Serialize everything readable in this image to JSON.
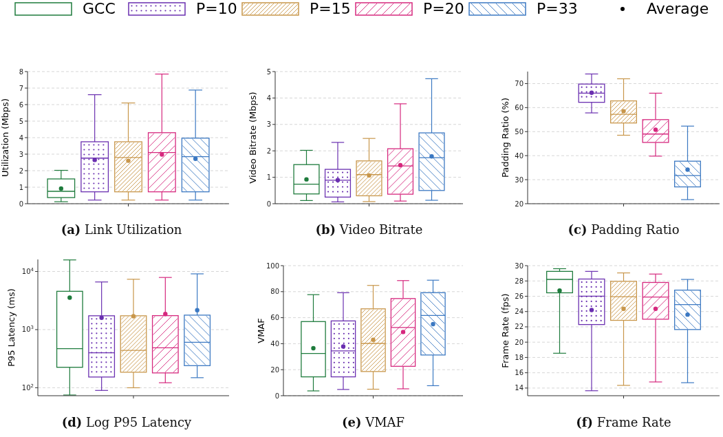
{
  "chart_data": [
    {
      "type": "box",
      "title": "(a) Link Utilization",
      "ylabel": "Utilization (Mbps)",
      "categories": [
        null
      ],
      "ylim": [
        0,
        8
      ],
      "yticks": [
        0,
        1,
        2,
        3,
        4,
        5,
        6,
        7,
        8
      ],
      "grid": "y",
      "legend": "top",
      "series": [
        {
          "name": "GCC",
          "color": "#1e7b3c",
          "boxes": [
            {
              "low": 0.12,
              "q1": 0.37,
              "median": 0.75,
              "q3": 1.5,
              "high": 2.02,
              "mean": 0.92
            }
          ]
        },
        {
          "name": "P=10",
          "color": "#6a2fb0",
          "boxes": [
            {
              "low": 0.22,
              "q1": 0.72,
              "median": 2.76,
              "q3": 3.75,
              "high": 6.6,
              "mean": 2.65
            }
          ]
        },
        {
          "name": "P=15",
          "color": "#c8964a",
          "boxes": [
            {
              "low": 0.22,
              "q1": 0.72,
              "median": 2.8,
              "q3": 3.75,
              "high": 6.1,
              "mean": 2.6
            }
          ]
        },
        {
          "name": "P=20",
          "color": "#d6287e",
          "boxes": [
            {
              "low": 0.22,
              "q1": 0.72,
              "median": 3.1,
              "q3": 4.3,
              "high": 7.85,
              "mean": 2.98
            }
          ]
        },
        {
          "name": "P=33",
          "color": "#3b78c2",
          "boxes": [
            {
              "low": 0.22,
              "q1": 0.72,
              "median": 2.85,
              "q3": 3.97,
              "high": 6.88,
              "mean": 2.72
            }
          ]
        },
        {
          "name": "Average",
          "type": "scatter",
          "color": "#000000",
          "values": [
            null
          ]
        }
      ]
    },
    {
      "type": "box",
      "title": "(b) Video Bitrate",
      "ylabel": "Video Bitrate (Mbps)",
      "categories": [
        null
      ],
      "ylim": [
        0,
        5
      ],
      "yticks": [
        0,
        1,
        2,
        3,
        4,
        5
      ],
      "grid": "y",
      "series": [
        {
          "color": "#1e7b3c",
          "boxes": [
            {
              "low": 0.12,
              "q1": 0.37,
              "median": 0.74,
              "q3": 1.48,
              "high": 2.02,
              "mean": 0.92
            }
          ]
        },
        {
          "color": "#6a2fb0",
          "boxes": [
            {
              "low": 0.07,
              "q1": 0.25,
              "median": 0.89,
              "q3": 1.3,
              "high": 2.32,
              "mean": 0.89
            }
          ]
        },
        {
          "color": "#c8964a",
          "boxes": [
            {
              "low": 0.08,
              "q1": 0.3,
              "median": 1.1,
              "q3": 1.62,
              "high": 2.47,
              "mean": 1.07
            }
          ]
        },
        {
          "color": "#d6287e",
          "boxes": [
            {
              "low": 0.1,
              "q1": 0.36,
              "median": 1.43,
              "q3": 2.08,
              "high": 3.78,
              "mean": 1.46
            }
          ]
        },
        {
          "color": "#3b78c2",
          "boxes": [
            {
              "low": 0.13,
              "q1": 0.5,
              "median": 1.74,
              "q3": 2.68,
              "high": 4.73,
              "mean": 1.79
            }
          ]
        }
      ]
    },
    {
      "type": "box",
      "title": "(c) Padding Ratio",
      "ylabel": "Padding Ratio (%)",
      "categories": [
        null
      ],
      "ylim": [
        20,
        75
      ],
      "yticks": [
        20,
        30,
        40,
        50,
        60,
        70
      ],
      "grid": "y",
      "series": [
        {
          "boxes": [
            null
          ]
        },
        {
          "color": "#6a2fb0",
          "boxes": [
            {
              "low": 57.8,
              "q1": 62.2,
              "median": 66,
              "q3": 69.8,
              "high": 74,
              "mean": 66.2
            }
          ]
        },
        {
          "color": "#c8964a",
          "boxes": [
            {
              "low": 48.5,
              "q1": 53.6,
              "median": 57.2,
              "q3": 62.8,
              "high": 72,
              "mean": 58.5
            }
          ]
        },
        {
          "color": "#d6287e",
          "boxes": [
            {
              "low": 39.8,
              "q1": 45.5,
              "median": 49,
              "q3": 55,
              "high": 66,
              "mean": 50.8
            }
          ]
        },
        {
          "color": "#3b78c2",
          "boxes": [
            {
              "low": 21.7,
              "q1": 27,
              "median": 31.7,
              "q3": 37.7,
              "high": 52.3,
              "mean": 34.2
            }
          ]
        }
      ]
    },
    {
      "type": "box",
      "title": "(d) Log P95 Latency",
      "ylabel": "P95 Latency (ms)",
      "categories": [
        null
      ],
      "log": true,
      "ylim": [
        73,
        16100
      ],
      "yticks": [
        {
          "value": 100,
          "label": "10$^{2}$"
        },
        {
          "value": 1000,
          "label": "10$^{3}$"
        },
        {
          "value": 10000,
          "label": "10$^{4}$"
        }
      ],
      "grid": "y",
      "series": [
        {
          "color": "#1e7b3c",
          "boxes": [
            {
              "low": 75,
              "q1": 225,
              "median": 470,
              "q3": 4560,
              "high": 15800,
              "mean": 3550
            }
          ]
        },
        {
          "color": "#6a2fb0",
          "boxes": [
            {
              "low": 90,
              "q1": 153,
              "median": 400,
              "q3": 1730,
              "high": 6600,
              "mean": 1600
            }
          ]
        },
        {
          "color": "#c8964a",
          "boxes": [
            {
              "low": 100,
              "q1": 185,
              "median": 440,
              "q3": 1730,
              "high": 7350,
              "mean": 1700
            }
          ]
        },
        {
          "color": "#d6287e",
          "boxes": [
            {
              "low": 122,
              "q1": 180,
              "median": 487,
              "q3": 1740,
              "high": 7890,
              "mean": 1860
            }
          ]
        },
        {
          "color": "#3b78c2",
          "boxes": [
            {
              "low": 149,
              "q1": 240,
              "median": 605,
              "q3": 1775,
              "high": 9100,
              "mean": 2160
            }
          ]
        }
      ]
    },
    {
      "type": "box",
      "title": "(e) VMAF",
      "ylabel": "VMAF",
      "categories": [
        null
      ],
      "ylim": [
        0,
        100
      ],
      "yticks": [
        0,
        20,
        40,
        60,
        80,
        100
      ],
      "grid": "y",
      "series": [
        {
          "color": "#1e7b3c",
          "boxes": [
            {
              "low": 3.7,
              "q1": 14.5,
              "median": 32.5,
              "q3": 57,
              "high": 77.7,
              "mean": 36.5
            }
          ]
        },
        {
          "color": "#6a2fb0",
          "boxes": [
            {
              "low": 4.8,
              "q1": 14.5,
              "median": 34.5,
              "q3": 57.5,
              "high": 79.2,
              "mean": 37.8
            }
          ]
        },
        {
          "color": "#c8964a",
          "boxes": [
            {
              "low": 5,
              "q1": 18.6,
              "median": 40.2,
              "q3": 66.8,
              "high": 84.8,
              "mean": 43
            }
          ]
        },
        {
          "color": "#d6287e",
          "boxes": [
            {
              "low": 5.3,
              "q1": 22.6,
              "median": 52.5,
              "q3": 74.7,
              "high": 88.5,
              "mean": 49
            }
          ]
        },
        {
          "color": "#3b78c2",
          "boxes": [
            {
              "low": 7.7,
              "q1": 31.3,
              "median": 61.7,
              "q3": 79.2,
              "high": 88.8,
              "mean": 55
            }
          ]
        }
      ]
    },
    {
      "type": "box",
      "title": "(f) Frame Rate",
      "ylabel": "Frame Rate (fps)",
      "categories": [
        null
      ],
      "ylim": [
        13,
        30
      ],
      "yticks": [
        14,
        16,
        18,
        20,
        22,
        24,
        26,
        28,
        30
      ],
      "grid": "y",
      "series": [
        {
          "color": "#1e7b3c",
          "boxes": [
            {
              "low": 18.55,
              "q1": 26.45,
              "median": 28.2,
              "q3": 29.25,
              "high": 29.6,
              "mean": 26.75
            }
          ]
        },
        {
          "color": "#6a2fb0",
          "boxes": [
            {
              "low": 13.65,
              "q1": 22.3,
              "median": 26,
              "q3": 28.25,
              "high": 29.25,
              "mean": 24.2
            }
          ]
        },
        {
          "color": "#c8964a",
          "boxes": [
            {
              "low": 14.35,
              "q1": 22.85,
              "median": 25.95,
              "q3": 27.95,
              "high": 29.05,
              "mean": 24.35
            }
          ]
        },
        {
          "color": "#d6287e",
          "boxes": [
            {
              "low": 14.8,
              "q1": 23,
              "median": 25.9,
              "q3": 27.8,
              "high": 28.9,
              "mean": 24.35
            }
          ]
        },
        {
          "color": "#3b78c2",
          "boxes": [
            {
              "low": 14.7,
              "q1": 21.65,
              "median": 24.9,
              "q3": 26.8,
              "high": 28.2,
              "mean": 23.6
            }
          ]
        }
      ]
    }
  ]
}
